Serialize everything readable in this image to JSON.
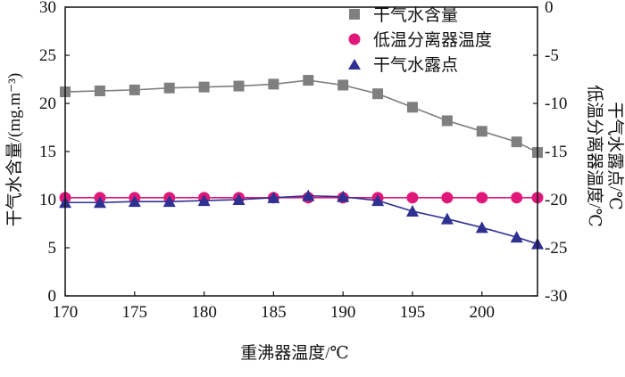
{
  "chart_data": {
    "type": "line",
    "xlabel": "重沸器温度/℃",
    "ylabel_left": "干气水含量/(mg.m⁻³)",
    "ylabel_right_1": "低温分离器温度/℃",
    "ylabel_right_2": "干气水露点/℃",
    "xlim": [
      170,
      204
    ],
    "xticks": [
      170,
      175,
      180,
      185,
      190,
      195,
      200
    ],
    "ylim_left": [
      0,
      30
    ],
    "yticks_left": [
      0,
      5,
      10,
      15,
      20,
      25,
      30
    ],
    "ylim_right": [
      -30,
      0
    ],
    "yticks_right": [
      -30,
      -25,
      -20,
      -15,
      -10,
      -5,
      0
    ],
    "grid": false,
    "legend_position": "top-right",
    "x": [
      170,
      172.5,
      175,
      177.5,
      180,
      182.5,
      185,
      187.5,
      190,
      192.5,
      195,
      197.5,
      200,
      202.5,
      204
    ],
    "series": [
      {
        "name": "干气水含量",
        "axis": "left",
        "marker": "square",
        "color": "#7f7f7f",
        "values": [
          21.2,
          21.3,
          21.4,
          21.6,
          21.7,
          21.8,
          22.0,
          22.4,
          21.9,
          21.0,
          19.6,
          18.2,
          17.1,
          16.0,
          14.9
        ]
      },
      {
        "name": "低温分离器温度",
        "axis": "right",
        "marker": "circle",
        "color": "#e0187a",
        "values": [
          -19.8,
          -19.8,
          -19.8,
          -19.8,
          -19.8,
          -19.8,
          -19.8,
          -19.8,
          -19.8,
          -19.8,
          -19.8,
          -19.8,
          -19.8,
          -19.8,
          -19.8
        ]
      },
      {
        "name": "干气水露点",
        "axis": "right",
        "marker": "triangle",
        "color": "#2e3192",
        "values": [
          -20.3,
          -20.3,
          -20.2,
          -20.2,
          -20.1,
          -20.0,
          -19.8,
          -19.6,
          -19.7,
          -20.1,
          -21.2,
          -22.0,
          -22.9,
          -23.9,
          -24.6
        ]
      }
    ]
  }
}
